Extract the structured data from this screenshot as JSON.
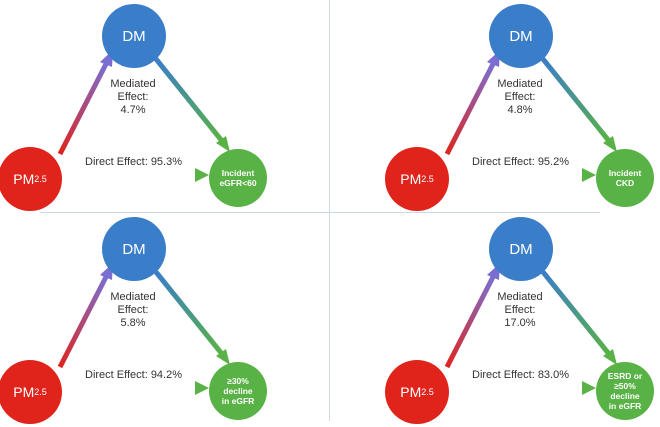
{
  "colors": {
    "dm_node": "#3a7dc9",
    "pm_node": "#e0241c",
    "outcome_node": "#59b245",
    "divider": "#c9d9ea"
  },
  "panels": [
    {
      "mediator_label": "DM",
      "exposure_label": "PM",
      "exposure_subscript": "2.5",
      "outcome_label": "Incident\neGFR<60",
      "mediated_text": "Mediated\nEffect:\n4.7%",
      "direct_text": "Direct Effect: 95.3%"
    },
    {
      "mediator_label": "DM",
      "exposure_label": "PM",
      "exposure_subscript": "2.5",
      "outcome_label": "Incident\nCKD",
      "mediated_text": "Mediated\nEffect:\n4.8%",
      "direct_text": "Direct Effect: 95.2%"
    },
    {
      "mediator_label": "DM",
      "exposure_label": "PM",
      "exposure_subscript": "2.5",
      "outcome_label": "≥30%\ndecline\nin eGFR",
      "mediated_text": "Mediated\nEffect:\n5.8%",
      "direct_text": "Direct Effect: 94.2%"
    },
    {
      "mediator_label": "DM",
      "exposure_label": "PM",
      "exposure_subscript": "2.5",
      "outcome_label": "ESRD or\n≥50%\ndecline\nin eGFR",
      "mediated_text": "Mediated\nEffect:\n17.0%",
      "direct_text": "Direct Effect: 83.0%"
    }
  ]
}
